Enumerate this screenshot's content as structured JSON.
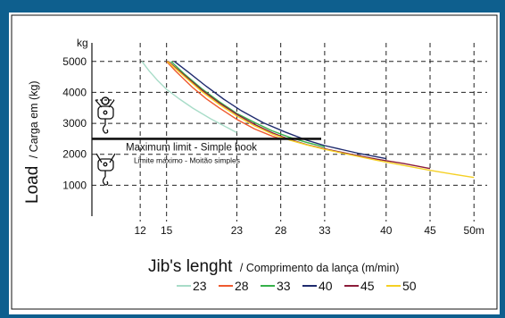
{
  "colors": {
    "frame": "#0e5f8e",
    "panel": "#ffffff",
    "series": [
      "#a8dcc8",
      "#ef5a2f",
      "#36b14a",
      "#1f2b6e",
      "#8c1d3a",
      "#f5d024"
    ]
  },
  "chart_data": {
    "type": "line",
    "y_unit": "kg",
    "ylabel_main": "Load",
    "ylabel_sub": "/ Carga em (kg)",
    "xlabel_main": "Jib's lenght",
    "xlabel_sub": "/ Comprimento da lança (m/min)",
    "x_ticks": [
      "12",
      "15",
      "23",
      "28",
      "33",
      "40",
      "45",
      "50m"
    ],
    "x_tick_values": [
      12,
      15,
      23,
      28,
      33,
      40,
      45,
      50
    ],
    "y_ticks": [
      "5000",
      "4000",
      "3000",
      "2000",
      "1000"
    ],
    "y_tick_values": [
      5000,
      4000,
      3000,
      2000,
      1000
    ],
    "xlim": [
      6.5,
      51.5
    ],
    "ylim": [
      0,
      5600
    ],
    "grid": true,
    "legend_position": "bottom",
    "max_line": {
      "value": 2500,
      "label": "Maximum limit - Simple hook",
      "label_sub": "Limite máximo - Moitão simples"
    },
    "series": [
      {
        "name": "23",
        "points": [
          [
            12.2,
            5000
          ],
          [
            13,
            4700
          ],
          [
            14,
            4380
          ],
          [
            15,
            4100
          ],
          [
            16.5,
            3780
          ],
          [
            18,
            3490
          ],
          [
            20,
            3150
          ],
          [
            22,
            2850
          ],
          [
            23,
            2700
          ]
        ]
      },
      {
        "name": "28",
        "points": [
          [
            15,
            5000
          ],
          [
            16,
            4700
          ],
          [
            17,
            4420
          ],
          [
            18,
            4150
          ],
          [
            19.5,
            3800
          ],
          [
            21,
            3500
          ],
          [
            23,
            3130
          ],
          [
            25,
            2820
          ],
          [
            27,
            2590
          ],
          [
            28,
            2500
          ]
        ]
      },
      {
        "name": "33",
        "points": [
          [
            15.5,
            5000
          ],
          [
            17,
            4600
          ],
          [
            19,
            4120
          ],
          [
            21,
            3700
          ],
          [
            23,
            3320
          ],
          [
            25,
            3030
          ],
          [
            27,
            2760
          ],
          [
            29,
            2550
          ],
          [
            31,
            2380
          ],
          [
            33,
            2240
          ]
        ]
      },
      {
        "name": "40",
        "points": [
          [
            15.9,
            5000
          ],
          [
            17.5,
            4650
          ],
          [
            19.5,
            4200
          ],
          [
            21.5,
            3780
          ],
          [
            23.5,
            3410
          ],
          [
            26,
            3020
          ],
          [
            28.5,
            2720
          ],
          [
            31,
            2450
          ],
          [
            33,
            2280
          ],
          [
            35,
            2150
          ],
          [
            37,
            2020
          ],
          [
            40,
            1860
          ]
        ]
      },
      {
        "name": "45",
        "points": [
          [
            15.2,
            5000
          ],
          [
            17,
            4560
          ],
          [
            19,
            4080
          ],
          [
            21,
            3660
          ],
          [
            23,
            3290
          ],
          [
            25,
            2970
          ],
          [
            27,
            2700
          ],
          [
            29,
            2480
          ],
          [
            31,
            2310
          ],
          [
            33,
            2180
          ],
          [
            36,
            2000
          ],
          [
            39,
            1840
          ],
          [
            42,
            1700
          ],
          [
            45,
            1540
          ]
        ]
      },
      {
        "name": "50",
        "points": [
          [
            15.1,
            5000
          ],
          [
            17,
            4520
          ],
          [
            19,
            4030
          ],
          [
            21,
            3610
          ],
          [
            23,
            3240
          ],
          [
            25,
            2920
          ],
          [
            27,
            2660
          ],
          [
            29,
            2460
          ],
          [
            31,
            2300
          ],
          [
            33,
            2160
          ],
          [
            36,
            1980
          ],
          [
            39,
            1800
          ],
          [
            42,
            1640
          ],
          [
            45,
            1480
          ],
          [
            48,
            1340
          ],
          [
            50,
            1250
          ]
        ]
      }
    ]
  }
}
